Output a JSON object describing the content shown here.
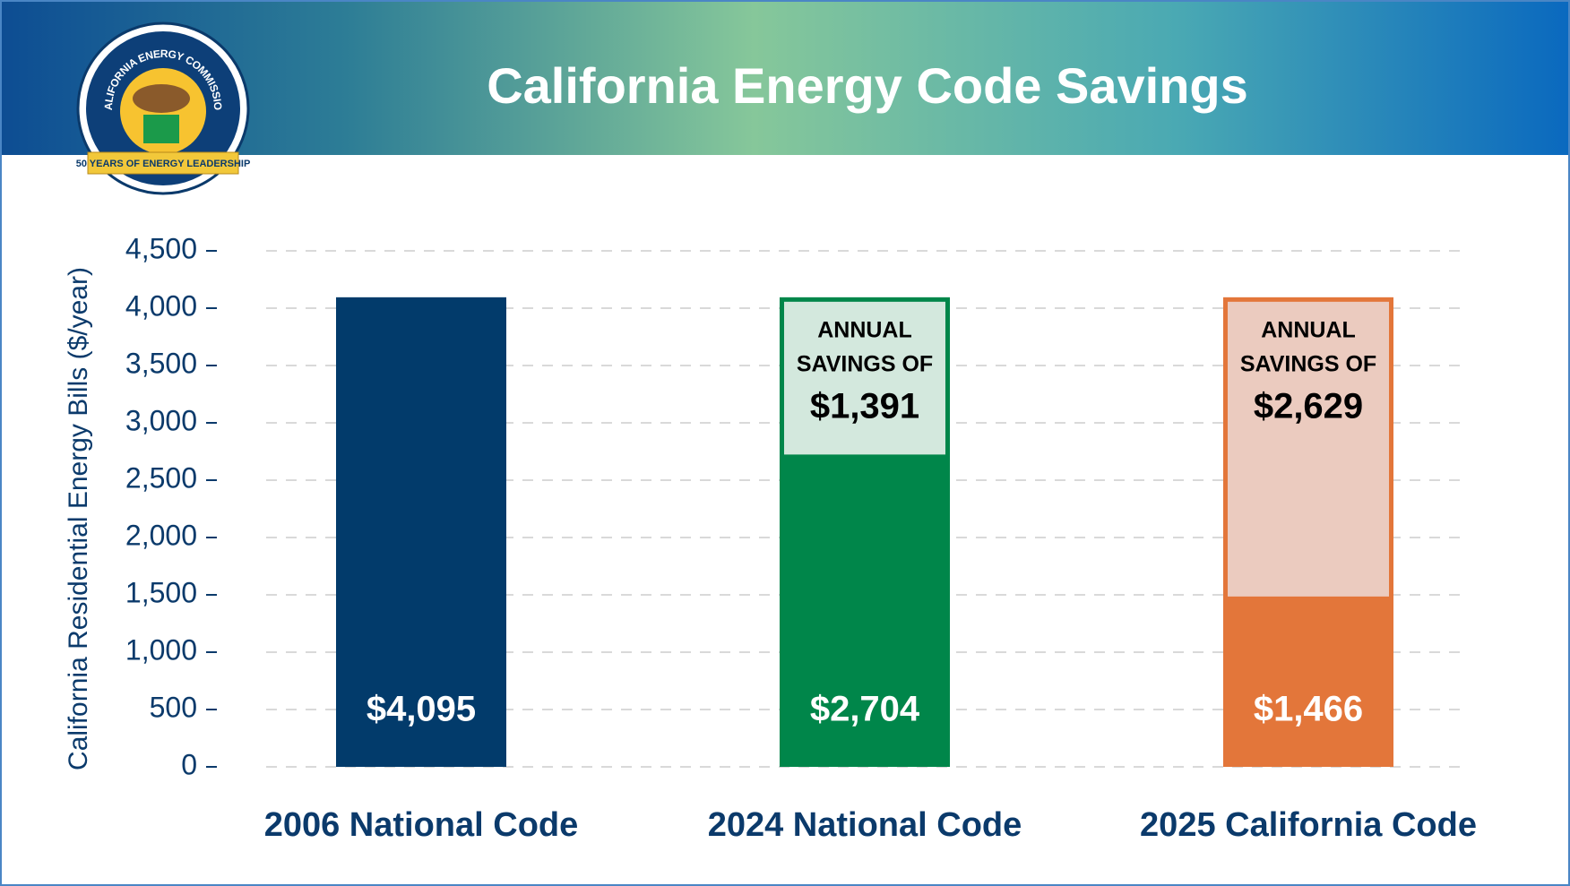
{
  "logo": {
    "ring_text": "CALIFORNIA ENERGY COMMISSION",
    "ribbon_text": "50 YEARS OF ENERGY LEADERSHIP"
  },
  "chart_data": {
    "type": "stacked_bar",
    "title": "California Energy Code Savings",
    "y_label": "California Residential Energy Bills ($/year)",
    "categories": [
      "2006 National Code",
      "2024 National Code",
      "2025 California Code"
    ],
    "series": [
      {
        "colors": [
          "#023b6b",
          "#00864a",
          "#e3763a"
        ],
        "values": [
          4095,
          2704,
          1466
        ],
        "value_labels": [
          "$4,095",
          "$2,704",
          "$1,466"
        ]
      },
      {
        "colors": [
          null,
          "#d3e8dd",
          "#ebcbbf"
        ],
        "values": [
          null,
          1391,
          2629
        ],
        "value_labels": [
          null,
          "$1,391",
          "$2,629"
        ]
      }
    ],
    "savings_label": [
      "ANNUAL",
      "SAVINGS OF"
    ],
    "ylim": [
      0,
      4500
    ],
    "yticks": [
      0,
      500,
      {
        "value": 1000,
        "label": "1,000"
      },
      {
        "value": 1500,
        "label": "1,500"
      },
      {
        "value": 2000,
        "label": "2,000"
      },
      {
        "value": 2500,
        "label": "2,500"
      },
      {
        "value": 3000,
        "label": "3,000"
      },
      {
        "value": 3500,
        "label": "3,500"
      },
      {
        "value": 4000,
        "label": "4,000"
      },
      {
        "value": 4500,
        "label": "4,500"
      }
    ],
    "grid": true
  }
}
